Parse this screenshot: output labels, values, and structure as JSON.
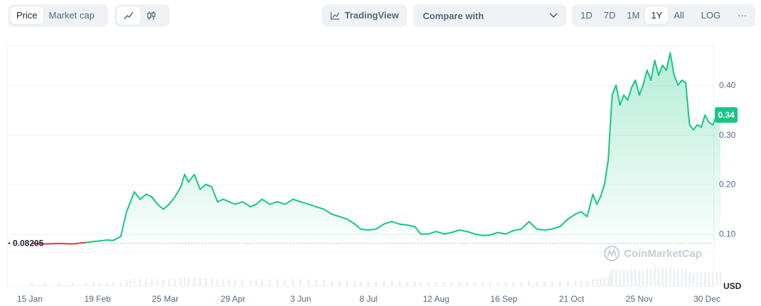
{
  "toolbar": {
    "mode_tabs": [
      "Price",
      "Market cap"
    ],
    "active_mode": "Price",
    "chart_types": [
      {
        "name": "line-chart-icon",
        "active": true
      },
      {
        "name": "candlestick-icon",
        "active": false
      }
    ],
    "tradingview_label": "TradingView",
    "compare_label": "Compare with",
    "ranges": [
      "1D",
      "7D",
      "1M",
      "1Y",
      "All"
    ],
    "active_range": "1Y",
    "log_label": "LOG",
    "more_label": "···"
  },
  "watermark": "CoinMarketCap",
  "colors": {
    "up": "#16c784",
    "down": "#ea3943",
    "badge": "#16c784",
    "text": "#58667e"
  },
  "chart_data": {
    "type": "area",
    "title": "",
    "xlabel": "",
    "ylabel": "USD",
    "currency_label": "USD",
    "baseline_value": 0.08205,
    "baseline_label": "0.08205",
    "current_price": 0.34,
    "current_price_label": "0.34",
    "ylim": [
      -0.005,
      0.48
    ],
    "x_ticks": [
      "15 Jan",
      "19 Feb",
      "25 Mar",
      "29 Apr",
      "3 Jun",
      "8 Jul",
      "12 Aug",
      "16 Sep",
      "21 Oct",
      "25 Nov",
      "30 Dec"
    ],
    "x_tick_dates": [
      "2024-01-15",
      "2024-02-19",
      "2024-03-25",
      "2024-04-29",
      "2024-06-03",
      "2024-07-08",
      "2024-08-12",
      "2024-09-16",
      "2024-10-21",
      "2024-11-25",
      "2024-12-30"
    ],
    "y_ticks": [
      0.1,
      0.2,
      0.3,
      0.4
    ],
    "y_tick_labels": [
      "0.10",
      "0.20",
      "0.30",
      "0.40"
    ],
    "grid": true,
    "series": [
      {
        "values": [
          {
            "x": "2024-01-16",
            "y": 0.081
          },
          {
            "x": "2024-01-23",
            "y": 0.08
          },
          {
            "x": "2024-01-30",
            "y": 0.081
          },
          {
            "x": "2024-02-06",
            "y": 0.08
          },
          {
            "x": "2024-02-13",
            "y": 0.083
          },
          {
            "x": "2024-02-17",
            "y": 0.085
          },
          {
            "x": "2024-02-20",
            "y": 0.086
          },
          {
            "x": "2024-02-24",
            "y": 0.088
          },
          {
            "x": "2024-02-27",
            "y": 0.087
          },
          {
            "x": "2024-03-02",
            "y": 0.095
          },
          {
            "x": "2024-03-05",
            "y": 0.145
          },
          {
            "x": "2024-03-07",
            "y": 0.165
          },
          {
            "x": "2024-03-09",
            "y": 0.185
          },
          {
            "x": "2024-03-12",
            "y": 0.17
          },
          {
            "x": "2024-03-15",
            "y": 0.18
          },
          {
            "x": "2024-03-18",
            "y": 0.175
          },
          {
            "x": "2024-03-21",
            "y": 0.16
          },
          {
            "x": "2024-03-24",
            "y": 0.15
          },
          {
            "x": "2024-03-27",
            "y": 0.16
          },
          {
            "x": "2024-03-30",
            "y": 0.175
          },
          {
            "x": "2024-04-02",
            "y": 0.195
          },
          {
            "x": "2024-04-04",
            "y": 0.22
          },
          {
            "x": "2024-04-06",
            "y": 0.205
          },
          {
            "x": "2024-04-09",
            "y": 0.22
          },
          {
            "x": "2024-04-12",
            "y": 0.19
          },
          {
            "x": "2024-04-15",
            "y": 0.2
          },
          {
            "x": "2024-04-18",
            "y": 0.195
          },
          {
            "x": "2024-04-21",
            "y": 0.165
          },
          {
            "x": "2024-04-24",
            "y": 0.17
          },
          {
            "x": "2024-04-27",
            "y": 0.165
          },
          {
            "x": "2024-04-30",
            "y": 0.16
          },
          {
            "x": "2024-05-04",
            "y": 0.165
          },
          {
            "x": "2024-05-08",
            "y": 0.155
          },
          {
            "x": "2024-05-11",
            "y": 0.16
          },
          {
            "x": "2024-05-14",
            "y": 0.17
          },
          {
            "x": "2024-05-18",
            "y": 0.16
          },
          {
            "x": "2024-05-22",
            "y": 0.165
          },
          {
            "x": "2024-05-26",
            "y": 0.16
          },
          {
            "x": "2024-05-30",
            "y": 0.17
          },
          {
            "x": "2024-06-03",
            "y": 0.165
          },
          {
            "x": "2024-06-07",
            "y": 0.16
          },
          {
            "x": "2024-06-11",
            "y": 0.155
          },
          {
            "x": "2024-06-15",
            "y": 0.15
          },
          {
            "x": "2024-06-19",
            "y": 0.14
          },
          {
            "x": "2024-06-23",
            "y": 0.135
          },
          {
            "x": "2024-06-27",
            "y": 0.13
          },
          {
            "x": "2024-07-01",
            "y": 0.12
          },
          {
            "x": "2024-07-04",
            "y": 0.11
          },
          {
            "x": "2024-07-08",
            "y": 0.108
          },
          {
            "x": "2024-07-12",
            "y": 0.11
          },
          {
            "x": "2024-07-16",
            "y": 0.12
          },
          {
            "x": "2024-07-20",
            "y": 0.125
          },
          {
            "x": "2024-07-24",
            "y": 0.12
          },
          {
            "x": "2024-07-28",
            "y": 0.118
          },
          {
            "x": "2024-08-01",
            "y": 0.115
          },
          {
            "x": "2024-08-04",
            "y": 0.1
          },
          {
            "x": "2024-08-08",
            "y": 0.1
          },
          {
            "x": "2024-08-12",
            "y": 0.105
          },
          {
            "x": "2024-08-16",
            "y": 0.1
          },
          {
            "x": "2024-08-20",
            "y": 0.103
          },
          {
            "x": "2024-08-24",
            "y": 0.108
          },
          {
            "x": "2024-08-28",
            "y": 0.105
          },
          {
            "x": "2024-09-01",
            "y": 0.1
          },
          {
            "x": "2024-09-05",
            "y": 0.097
          },
          {
            "x": "2024-09-09",
            "y": 0.098
          },
          {
            "x": "2024-09-13",
            "y": 0.103
          },
          {
            "x": "2024-09-17",
            "y": 0.1
          },
          {
            "x": "2024-09-21",
            "y": 0.107
          },
          {
            "x": "2024-09-25",
            "y": 0.11
          },
          {
            "x": "2024-09-29",
            "y": 0.125
          },
          {
            "x": "2024-10-03",
            "y": 0.11
          },
          {
            "x": "2024-10-07",
            "y": 0.108
          },
          {
            "x": "2024-10-11",
            "y": 0.11
          },
          {
            "x": "2024-10-15",
            "y": 0.115
          },
          {
            "x": "2024-10-19",
            "y": 0.13
          },
          {
            "x": "2024-10-23",
            "y": 0.14
          },
          {
            "x": "2024-10-26",
            "y": 0.145
          },
          {
            "x": "2024-10-29",
            "y": 0.135
          },
          {
            "x": "2024-11-01",
            "y": 0.18
          },
          {
            "x": "2024-11-03",
            "y": 0.16
          },
          {
            "x": "2024-11-05",
            "y": 0.175
          },
          {
            "x": "2024-11-07",
            "y": 0.2
          },
          {
            "x": "2024-11-09",
            "y": 0.25
          },
          {
            "x": "2024-11-10",
            "y": 0.32
          },
          {
            "x": "2024-11-11",
            "y": 0.38
          },
          {
            "x": "2024-11-13",
            "y": 0.4
          },
          {
            "x": "2024-11-15",
            "y": 0.36
          },
          {
            "x": "2024-11-17",
            "y": 0.38
          },
          {
            "x": "2024-11-19",
            "y": 0.37
          },
          {
            "x": "2024-11-21",
            "y": 0.395
          },
          {
            "x": "2024-11-23",
            "y": 0.41
          },
          {
            "x": "2024-11-25",
            "y": 0.38
          },
          {
            "x": "2024-11-27",
            "y": 0.4
          },
          {
            "x": "2024-11-29",
            "y": 0.43
          },
          {
            "x": "2024-12-01",
            "y": 0.41
          },
          {
            "x": "2024-12-03",
            "y": 0.45
          },
          {
            "x": "2024-12-05",
            "y": 0.42
          },
          {
            "x": "2024-12-07",
            "y": 0.44
          },
          {
            "x": "2024-12-09",
            "y": 0.43
          },
          {
            "x": "2024-12-11",
            "y": 0.465
          },
          {
            "x": "2024-12-13",
            "y": 0.42
          },
          {
            "x": "2024-12-15",
            "y": 0.4
          },
          {
            "x": "2024-12-17",
            "y": 0.41
          },
          {
            "x": "2024-12-19",
            "y": 0.405
          },
          {
            "x": "2024-12-21",
            "y": 0.32
          },
          {
            "x": "2024-12-23",
            "y": 0.31
          },
          {
            "x": "2024-12-25",
            "y": 0.32
          },
          {
            "x": "2024-12-27",
            "y": 0.315
          },
          {
            "x": "2024-12-29",
            "y": 0.34
          },
          {
            "x": "2024-12-31",
            "y": 0.325
          },
          {
            "x": "2025-01-02",
            "y": 0.32
          },
          {
            "x": "2025-01-04",
            "y": 0.34
          },
          {
            "x": "2025-01-06",
            "y": 0.34
          }
        ]
      }
    ]
  }
}
